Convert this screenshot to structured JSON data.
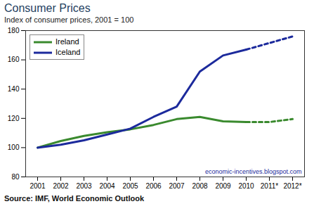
{
  "chart_data": {
    "type": "line",
    "title": "Consumer Prices",
    "subtitle": "Index of consumer prices, 2001 = 100",
    "caption": "Source: IMF, World Economic Outlook",
    "annotations": [
      "economic-incentives.blogspot.com"
    ],
    "categories": [
      "2001",
      "2002",
      "2003",
      "2004",
      "2005",
      "2006",
      "2007",
      "2008",
      "2009",
      "2010",
      "2011*",
      "2012*"
    ],
    "series": [
      {
        "name": "Ireland",
        "color": "#3a8a2e",
        "line_style": "solid",
        "values": [
          100,
          104.5,
          108,
          110.5,
          112.5,
          115.5,
          119.5,
          121,
          118,
          117.5,
          null,
          null
        ]
      },
      {
        "name": "Iceland",
        "color": "#1c2a9c",
        "line_style": "solid",
        "values": [
          100,
          102,
          105,
          109,
          113,
          121,
          128,
          152,
          163,
          167,
          null,
          null
        ]
      },
      {
        "name": "Ireland",
        "color": "#3a8a2e",
        "line_style": "dashed",
        "values": [
          null,
          null,
          null,
          null,
          null,
          null,
          null,
          null,
          null,
          117.5,
          117.5,
          119.5
        ]
      },
      {
        "name": "Iceland",
        "color": "#1c2a9c",
        "line_style": "dashed",
        "values": [
          null,
          null,
          null,
          null,
          null,
          null,
          null,
          null,
          null,
          167,
          171.5,
          176
        ]
      }
    ],
    "ylim": [
      80,
      180
    ],
    "yticks": [
      80,
      100,
      120,
      140,
      160,
      180
    ],
    "legend": "upper left"
  }
}
